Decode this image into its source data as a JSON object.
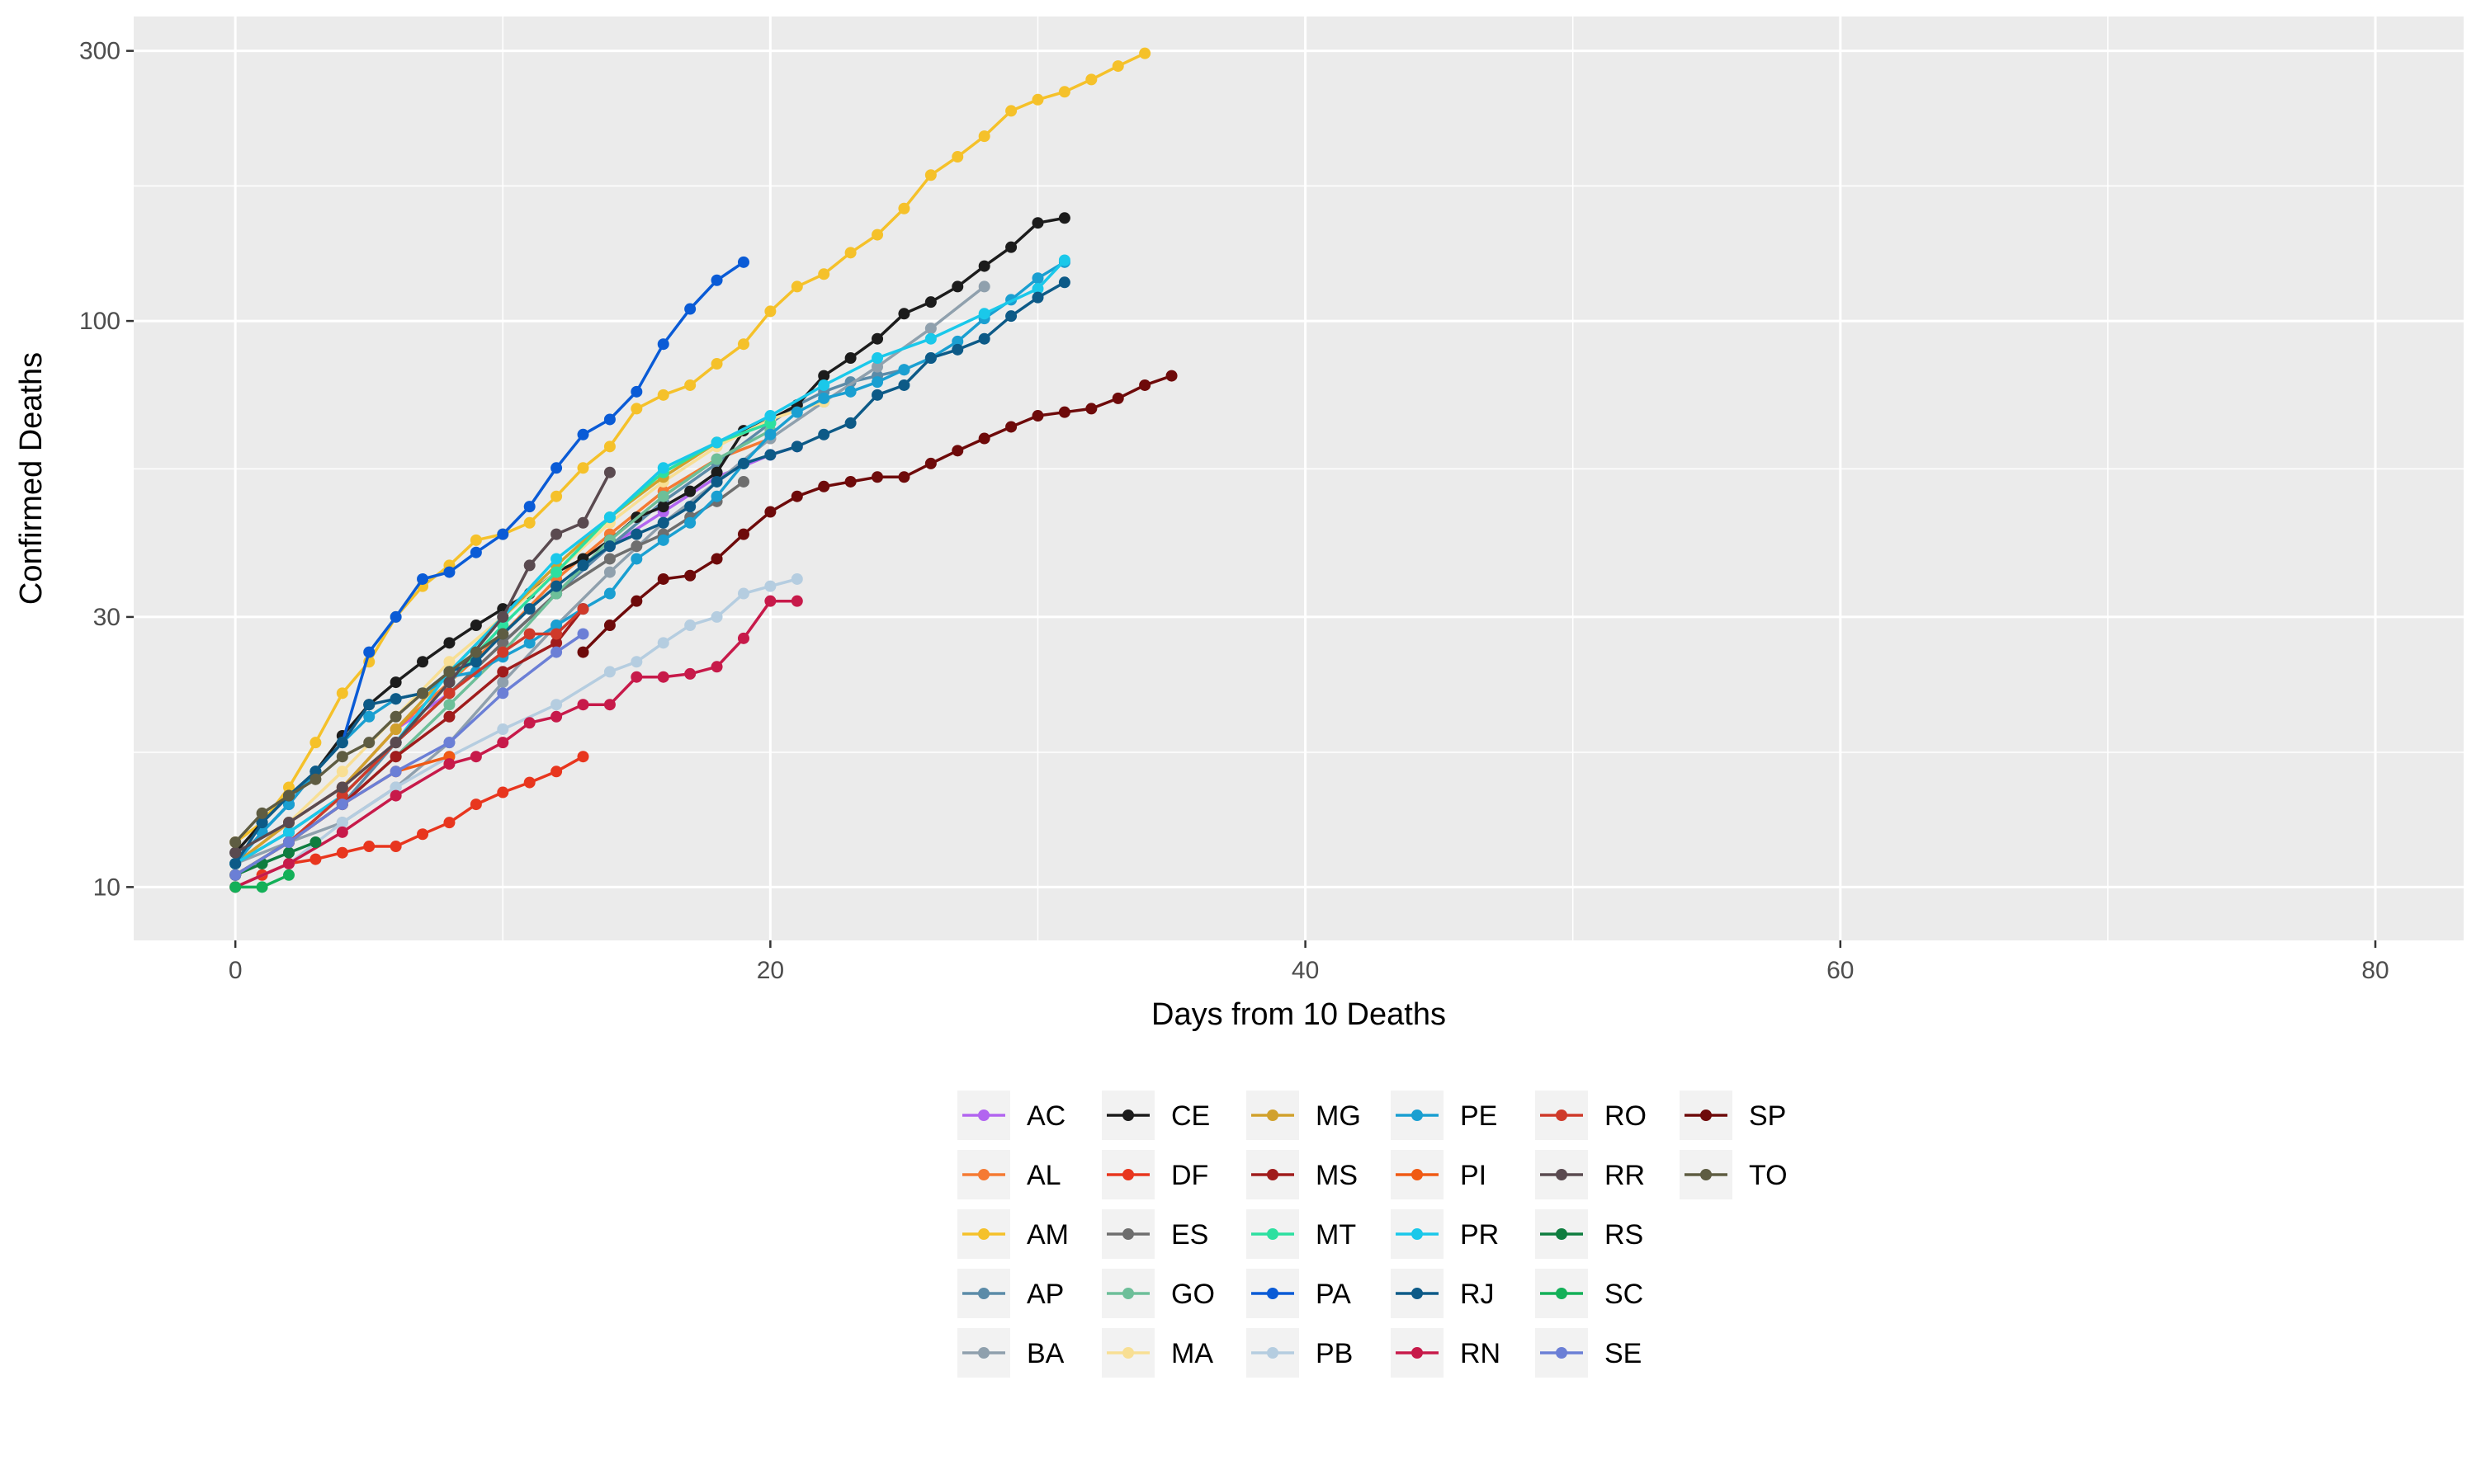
{
  "chart_data": {
    "type": "line",
    "title": "",
    "xlabel": "Days from 10 Deaths",
    "ylabel": "Confirmed Deaths",
    "xlim": [
      -3.8,
      83.3
    ],
    "ylim": [
      8.05,
      345
    ],
    "y_scale": "log10",
    "x_ticks": [
      0,
      20,
      40,
      60,
      80
    ],
    "x_minor_ticks": [
      10,
      30,
      50,
      70
    ],
    "y_ticks": [
      10,
      30,
      100,
      300
    ],
    "y_minor_ticks": [
      17.3,
      54.8,
      173.2
    ],
    "grid": true,
    "legend_position": "bottom",
    "legend_columns": 6,
    "series": [
      {
        "name": "AC",
        "color": "#b265f0",
        "x": [
          0,
          2,
          4,
          6,
          8,
          10,
          12,
          14,
          16,
          18,
          20,
          21
        ],
        "y": [
          11,
          13,
          15,
          19,
          22,
          27,
          33,
          40,
          46,
          53,
          58,
          60
        ]
      },
      {
        "name": "AL",
        "color": "#f57a33",
        "x": [
          0,
          2,
          4,
          6,
          8,
          10,
          12,
          14,
          16,
          18,
          20
        ],
        "y": [
          11,
          13,
          15,
          19,
          23,
          28,
          35,
          42,
          50,
          57,
          62
        ]
      },
      {
        "name": "AM",
        "color": "#f5c12a",
        "x": [
          0,
          1,
          2,
          3,
          4,
          5,
          6,
          7,
          8,
          9,
          10,
          11,
          12,
          13,
          14,
          15,
          16,
          17,
          18,
          19,
          20,
          21,
          22,
          23,
          24,
          25,
          26,
          27,
          28,
          29,
          30,
          31,
          32,
          33,
          34
        ],
        "y": [
          12,
          13,
          15,
          18,
          22,
          25,
          30,
          34,
          37,
          41,
          42,
          44,
          49,
          55,
          60,
          70,
          74,
          77,
          84,
          91,
          104,
          115,
          121,
          132,
          142,
          158,
          181,
          195,
          212,
          235,
          246,
          254,
          267,
          282,
          297
        ]
      },
      {
        "name": "AP",
        "color": "#5b8ba8",
        "x": [
          0,
          2,
          4,
          6,
          8,
          10,
          12,
          14,
          16,
          18,
          20,
          21,
          22,
          23,
          24,
          25
        ],
        "y": [
          10.5,
          12,
          14,
          18,
          22,
          27,
          33,
          40,
          48,
          56,
          66,
          71,
          75,
          78,
          80,
          82
        ]
      },
      {
        "name": "BA",
        "color": "#8fa0ad",
        "x": [
          0,
          2,
          4,
          6,
          8,
          10,
          12,
          14,
          16,
          18,
          20,
          22,
          24,
          26,
          28
        ],
        "y": [
          11,
          12,
          13,
          15,
          18,
          23,
          29,
          36,
          44,
          52,
          62,
          72,
          83,
          97,
          115
        ]
      },
      {
        "name": "CE",
        "color": "#1c1c1c",
        "x": [
          0,
          1,
          2,
          3,
          4,
          5,
          6,
          7,
          8,
          9,
          10,
          11,
          12,
          13,
          14,
          15,
          16,
          17,
          18,
          19,
          20,
          21,
          22,
          23,
          24,
          25,
          26,
          27,
          28,
          29,
          30,
          31
        ],
        "y": [
          11.5,
          13,
          14.5,
          16,
          18.5,
          21,
          23,
          25,
          27,
          29,
          31,
          33,
          36,
          38,
          41,
          45,
          47,
          50,
          54,
          64,
          67,
          71,
          80,
          86,
          93,
          103,
          108,
          115,
          125,
          135,
          149,
          152
        ]
      },
      {
        "name": "DF",
        "color": "#e8361e",
        "x": [
          0,
          1,
          2,
          3,
          4,
          5,
          6,
          7,
          8,
          9,
          10,
          11,
          12,
          13
        ],
        "y": [
          10,
          10.5,
          11,
          11.2,
          11.5,
          11.8,
          11.8,
          12.4,
          13,
          14,
          14.7,
          15.3,
          16,
          17
        ]
      },
      {
        "name": "ES",
        "color": "#6e6e6e",
        "x": [
          0,
          2,
          4,
          6,
          8,
          10,
          12,
          14,
          15,
          16,
          17,
          18,
          19
        ],
        "y": [
          11,
          12.5,
          14.5,
          18,
          22,
          27,
          33,
          38,
          40,
          42,
          45,
          48,
          52
        ]
      },
      {
        "name": "GO",
        "color": "#6dbf99",
        "x": [
          0,
          2,
          4,
          6,
          8,
          10,
          12,
          14,
          16,
          18,
          20
        ],
        "y": [
          10.5,
          12,
          14,
          17,
          21,
          26,
          33,
          41,
          49,
          57,
          64
        ]
      },
      {
        "name": "MA",
        "color": "#f8df94",
        "x": [
          0,
          2,
          4,
          6,
          8,
          10,
          12,
          14,
          16,
          18,
          20,
          22
        ],
        "y": [
          11,
          13,
          16,
          20,
          25,
          30,
          36,
          44,
          52,
          60,
          67,
          72
        ]
      },
      {
        "name": "MG",
        "color": "#d1a12d",
        "x": [
          0,
          2,
          4,
          6,
          8,
          10,
          12,
          14,
          16,
          18
        ],
        "y": [
          11,
          13,
          15,
          19,
          24,
          30,
          37,
          45,
          53,
          61
        ]
      },
      {
        "name": "MS",
        "color": "#a01c1c",
        "x": [
          0,
          2,
          4,
          6,
          8,
          10,
          12,
          13
        ],
        "y": [
          10.5,
          12,
          14,
          17,
          20,
          24,
          27,
          31
        ]
      },
      {
        "name": "MT",
        "color": "#2de0a0",
        "x": [
          0,
          2,
          4,
          6,
          8,
          10,
          12,
          14,
          16,
          18,
          20
        ],
        "y": [
          10.5,
          12,
          14.5,
          18,
          23,
          29,
          36,
          45,
          54,
          61,
          66
        ]
      },
      {
        "name": "PA",
        "color": "#0a5bd6",
        "x": [
          0,
          1,
          2,
          3,
          4,
          5,
          6,
          7,
          8,
          9,
          10,
          11,
          12,
          13,
          14,
          15,
          16,
          17,
          18,
          19
        ],
        "y": [
          11,
          12.5,
          14,
          16,
          18,
          26,
          30,
          35,
          36,
          39,
          42,
          47,
          55,
          63,
          67,
          75,
          91,
          105,
          118,
          127
        ]
      },
      {
        "name": "PB",
        "color": "#b5cde0",
        "x": [
          0,
          2,
          4,
          6,
          8,
          10,
          12,
          14,
          15,
          16,
          17,
          18,
          19,
          20,
          21
        ],
        "y": [
          10,
          11,
          13,
          15,
          17,
          19,
          21,
          24,
          25,
          27,
          29,
          30,
          33,
          34,
          35
        ]
      },
      {
        "name": "PE",
        "color": "#1a9fd1",
        "x": [
          0,
          1,
          2,
          3,
          4,
          5,
          6,
          7,
          8,
          9,
          10,
          11,
          12,
          13,
          14,
          15,
          16,
          17,
          18,
          19,
          20,
          21,
          22,
          23,
          24,
          25,
          26,
          27,
          28,
          29,
          30,
          31
        ],
        "y": [
          11,
          12.5,
          14,
          16,
          18,
          20,
          21.5,
          22,
          23.5,
          24,
          25.5,
          27,
          29,
          31,
          33,
          38,
          41,
          44,
          49,
          56,
          63,
          69,
          73,
          75,
          78,
          82,
          86,
          92,
          101,
          109,
          119,
          127
        ]
      },
      {
        "name": "PI",
        "color": "#f05a14",
        "x": [
          0,
          2,
          4,
          6,
          8
        ],
        "y": [
          10.5,
          12,
          14,
          16,
          17
        ]
      },
      {
        "name": "PR",
        "color": "#1ac8ea",
        "x": [
          0,
          2,
          4,
          6,
          8,
          10,
          12,
          14,
          16,
          18,
          20,
          22,
          24,
          26,
          28,
          30,
          31
        ],
        "y": [
          11,
          12.5,
          14.5,
          18,
          24,
          30,
          38,
          45,
          55,
          61,
          68,
          77,
          86,
          93,
          103,
          114,
          128
        ]
      },
      {
        "name": "RJ",
        "color": "#0d5a87",
        "x": [
          0,
          1,
          2,
          3,
          4,
          5,
          6,
          7,
          8,
          9,
          10,
          11,
          12,
          13,
          14,
          15,
          16,
          17,
          18,
          19,
          20,
          21,
          22,
          23,
          24,
          25,
          26,
          27,
          28,
          29,
          30,
          31
        ],
        "y": [
          11,
          13,
          14.5,
          16,
          18,
          21,
          21.5,
          22,
          24,
          25,
          28,
          31,
          34,
          37,
          40,
          42,
          44,
          47,
          52,
          56,
          58,
          60,
          63,
          66,
          74,
          77,
          86,
          89,
          93,
          102,
          110,
          117
        ]
      },
      {
        "name": "RN",
        "color": "#c71a4a",
        "x": [
          0,
          2,
          4,
          6,
          8,
          9,
          10,
          11,
          12,
          13,
          14,
          15,
          16,
          17,
          18,
          19,
          20,
          21
        ],
        "y": [
          10,
          11,
          12.5,
          14.5,
          16.5,
          17,
          18,
          19.5,
          20,
          21,
          21,
          23.5,
          23.5,
          23.8,
          24.5,
          27.5,
          32,
          32
        ]
      },
      {
        "name": "RO",
        "color": "#cf3a2a",
        "x": [
          0,
          2,
          4,
          6,
          8,
          10,
          11,
          12,
          13
        ],
        "y": [
          10.5,
          12,
          14.5,
          18,
          22,
          26,
          28,
          28,
          31
        ]
      },
      {
        "name": "RR",
        "color": "#5a4a50",
        "x": [
          0,
          2,
          4,
          6,
          8,
          10,
          11,
          12,
          13,
          14
        ],
        "y": [
          11.5,
          13,
          15,
          18,
          23,
          30,
          37,
          42,
          44,
          54
        ]
      },
      {
        "name": "RS",
        "color": "#0f7d3f",
        "x": [
          0,
          1,
          2,
          3
        ],
        "y": [
          10.5,
          11,
          11.5,
          12
        ]
      },
      {
        "name": "SC",
        "color": "#13b058",
        "x": [
          0,
          1,
          2
        ],
        "y": [
          10,
          10,
          10.5
        ]
      },
      {
        "name": "SE",
        "color": "#6b7fd6",
        "x": [
          0,
          2,
          4,
          6,
          8,
          10,
          12,
          13
        ],
        "y": [
          10.5,
          12,
          14,
          16,
          18,
          22,
          26,
          28
        ]
      },
      {
        "name": "SP",
        "color": "#6e0a0a",
        "x": [
          13,
          14,
          15,
          16,
          17,
          18,
          19,
          20,
          21,
          22,
          23,
          24,
          25,
          26,
          27,
          28,
          29,
          30,
          31,
          32,
          33,
          34,
          35
        ],
        "y": [
          26,
          29,
          32,
          35,
          35.5,
          38,
          42,
          46,
          49,
          51,
          52,
          53,
          53,
          56,
          59,
          62,
          65,
          68,
          69,
          70,
          73,
          77,
          80
        ]
      },
      {
        "name": "TO",
        "color": "#5e5c42",
        "x": [
          0,
          1,
          2,
          3,
          4,
          5,
          6,
          7,
          8,
          9,
          10
        ],
        "y": [
          12,
          13.5,
          14.5,
          15.5,
          17,
          18,
          20,
          22,
          24,
          26,
          28
        ]
      }
    ]
  }
}
